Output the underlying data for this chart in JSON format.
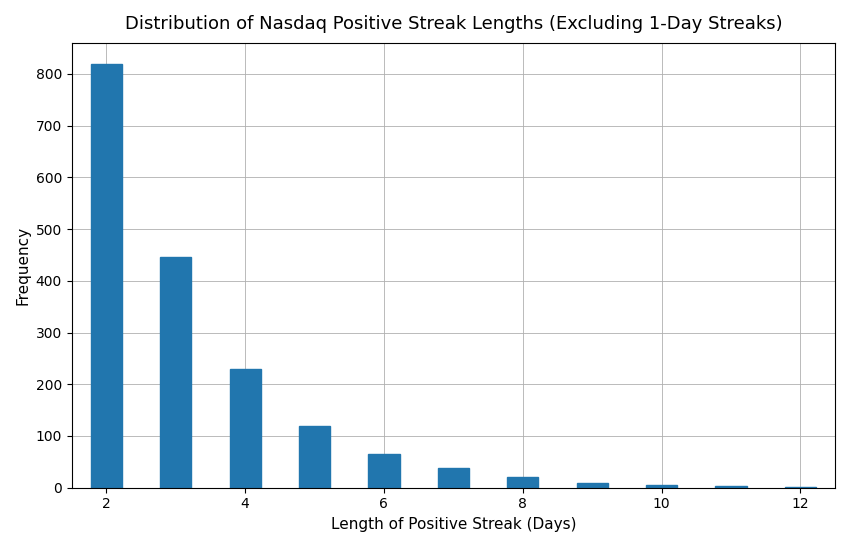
{
  "streak_lengths": [
    2,
    3,
    4,
    5,
    6,
    7,
    8,
    9,
    10,
    11,
    12
  ],
  "frequencies": [
    820,
    447,
    230,
    120,
    65,
    38,
    20,
    10,
    6,
    4,
    2
  ],
  "bar_color": "#2176ae",
  "title": "Distribution of Nasdaq Positive Streak Lengths (Excluding 1-Day Streaks)",
  "xlabel": "Length of Positive Streak (Days)",
  "ylabel": "Frequency",
  "xlim": [
    1.5,
    12.5
  ],
  "ylim": [
    0,
    860
  ],
  "xticks": [
    2,
    4,
    6,
    8,
    10,
    12
  ],
  "yticks": [
    0,
    100,
    200,
    300,
    400,
    500,
    600,
    700,
    800
  ],
  "bar_width": 0.45,
  "figsize": [
    8.5,
    5.47
  ],
  "dpi": 100,
  "grid_color": "#b0b0b0",
  "grid_linewidth": 0.6,
  "title_fontsize": 13,
  "label_fontsize": 11,
  "tick_fontsize": 10
}
